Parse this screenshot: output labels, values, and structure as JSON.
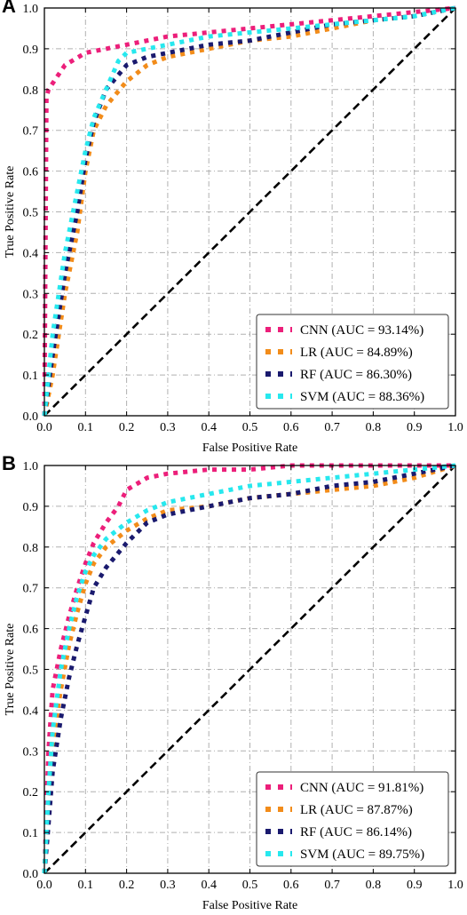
{
  "chart_data": [
    {
      "panel_label": "A",
      "type": "line",
      "xlabel": "False Positive Rate",
      "ylabel": "True Positive Rate",
      "xlim": [
        0,
        1
      ],
      "ylim": [
        0,
        1
      ],
      "xticks": [
        "0.0",
        "0.1",
        "0.2",
        "0.3",
        "0.4",
        "0.5",
        "0.6",
        "0.7",
        "0.8",
        "0.9",
        "1.0"
      ],
      "yticks": [
        "0.0",
        "0.1",
        "0.2",
        "0.3",
        "0.4",
        "0.5",
        "0.6",
        "0.7",
        "0.8",
        "0.9",
        "1.0"
      ],
      "grid": true,
      "legend_position": "bottom-right",
      "diagonal": true,
      "series": [
        {
          "name": "CNN (AUC = 93.14%)",
          "color": "#ec1f7a",
          "x": [
            0,
            0.005,
            0.01,
            0.03,
            0.05,
            0.1,
            0.15,
            0.2,
            0.3,
            0.4,
            0.5,
            0.6,
            0.7,
            0.8,
            0.9,
            1.0
          ],
          "y": [
            0,
            0.78,
            0.8,
            0.83,
            0.86,
            0.89,
            0.9,
            0.91,
            0.93,
            0.94,
            0.95,
            0.96,
            0.97,
            0.98,
            0.99,
            1.0
          ]
        },
        {
          "name": "LR (AUC = 84.89%)",
          "color": "#f28c1a",
          "x": [
            0,
            0.02,
            0.05,
            0.08,
            0.1,
            0.12,
            0.15,
            0.2,
            0.25,
            0.3,
            0.4,
            0.5,
            0.6,
            0.7,
            0.8,
            0.9,
            1.0
          ],
          "y": [
            0,
            0.1,
            0.3,
            0.45,
            0.6,
            0.7,
            0.76,
            0.82,
            0.86,
            0.88,
            0.9,
            0.92,
            0.93,
            0.95,
            0.97,
            0.98,
            1.0
          ]
        },
        {
          "name": "RF (AUC = 86.30%)",
          "color": "#1a1a6e",
          "x": [
            0,
            0.02,
            0.05,
            0.08,
            0.1,
            0.12,
            0.15,
            0.2,
            0.25,
            0.3,
            0.4,
            0.5,
            0.6,
            0.7,
            0.8,
            0.9,
            1.0
          ],
          "y": [
            0,
            0.15,
            0.35,
            0.5,
            0.63,
            0.72,
            0.8,
            0.86,
            0.88,
            0.89,
            0.91,
            0.92,
            0.94,
            0.96,
            0.97,
            0.98,
            1.0
          ]
        },
        {
          "name": "SVM (AUC = 88.36%)",
          "color": "#27e8ee",
          "x": [
            0,
            0.02,
            0.05,
            0.08,
            0.1,
            0.12,
            0.15,
            0.18,
            0.2,
            0.3,
            0.4,
            0.5,
            0.6,
            0.7,
            0.8,
            0.9,
            1.0
          ],
          "y": [
            0,
            0.2,
            0.4,
            0.55,
            0.65,
            0.73,
            0.8,
            0.87,
            0.89,
            0.91,
            0.93,
            0.94,
            0.95,
            0.96,
            0.97,
            0.98,
            1.0
          ]
        }
      ]
    },
    {
      "panel_label": "B",
      "type": "line",
      "xlabel": "False Positive Rate",
      "ylabel": "True Positive Rate",
      "xlim": [
        0,
        1
      ],
      "ylim": [
        0,
        1
      ],
      "xticks": [
        "0.0",
        "0.1",
        "0.2",
        "0.3",
        "0.4",
        "0.5",
        "0.6",
        "0.7",
        "0.8",
        "0.9",
        "1.0"
      ],
      "yticks": [
        "0.0",
        "0.1",
        "0.2",
        "0.3",
        "0.4",
        "0.5",
        "0.6",
        "0.7",
        "0.8",
        "0.9",
        "1.0"
      ],
      "grid": true,
      "legend_position": "bottom-right",
      "diagonal": true,
      "series": [
        {
          "name": "CNN (AUC = 91.81%)",
          "color": "#ec1f7a",
          "x": [
            0,
            0.01,
            0.02,
            0.04,
            0.06,
            0.08,
            0.1,
            0.12,
            0.15,
            0.18,
            0.2,
            0.25,
            0.3,
            0.4,
            0.5,
            0.6,
            0.8,
            1.0
          ],
          "y": [
            0,
            0.3,
            0.45,
            0.55,
            0.63,
            0.7,
            0.76,
            0.81,
            0.86,
            0.9,
            0.94,
            0.97,
            0.98,
            0.99,
            0.99,
            1.0,
            1.0,
            1.0
          ]
        },
        {
          "name": "LR (AUC = 87.87%)",
          "color": "#f28c1a",
          "x": [
            0,
            0.01,
            0.02,
            0.04,
            0.06,
            0.08,
            0.1,
            0.12,
            0.15,
            0.2,
            0.25,
            0.3,
            0.4,
            0.5,
            0.6,
            0.7,
            0.8,
            0.9,
            1.0
          ],
          "y": [
            0,
            0.18,
            0.32,
            0.45,
            0.56,
            0.64,
            0.71,
            0.76,
            0.8,
            0.84,
            0.87,
            0.89,
            0.9,
            0.92,
            0.93,
            0.94,
            0.95,
            0.97,
            1.0
          ]
        },
        {
          "name": "RF (AUC = 86.14%)",
          "color": "#1a1a6e",
          "x": [
            0,
            0.01,
            0.02,
            0.04,
            0.06,
            0.08,
            0.1,
            0.12,
            0.15,
            0.2,
            0.25,
            0.3,
            0.4,
            0.5,
            0.6,
            0.7,
            0.8,
            0.9,
            1.0
          ],
          "y": [
            0,
            0.12,
            0.25,
            0.38,
            0.48,
            0.56,
            0.63,
            0.7,
            0.75,
            0.81,
            0.86,
            0.88,
            0.9,
            0.92,
            0.93,
            0.95,
            0.96,
            0.98,
            1.0
          ]
        },
        {
          "name": "SVM (AUC = 89.75%)",
          "color": "#27e8ee",
          "x": [
            0,
            0.01,
            0.02,
            0.04,
            0.06,
            0.08,
            0.1,
            0.12,
            0.15,
            0.2,
            0.25,
            0.3,
            0.4,
            0.5,
            0.6,
            0.7,
            0.8,
            0.9,
            1.0
          ],
          "y": [
            0,
            0.2,
            0.35,
            0.5,
            0.6,
            0.68,
            0.74,
            0.78,
            0.82,
            0.86,
            0.89,
            0.91,
            0.93,
            0.95,
            0.96,
            0.97,
            0.98,
            0.99,
            1.0
          ]
        }
      ]
    }
  ]
}
